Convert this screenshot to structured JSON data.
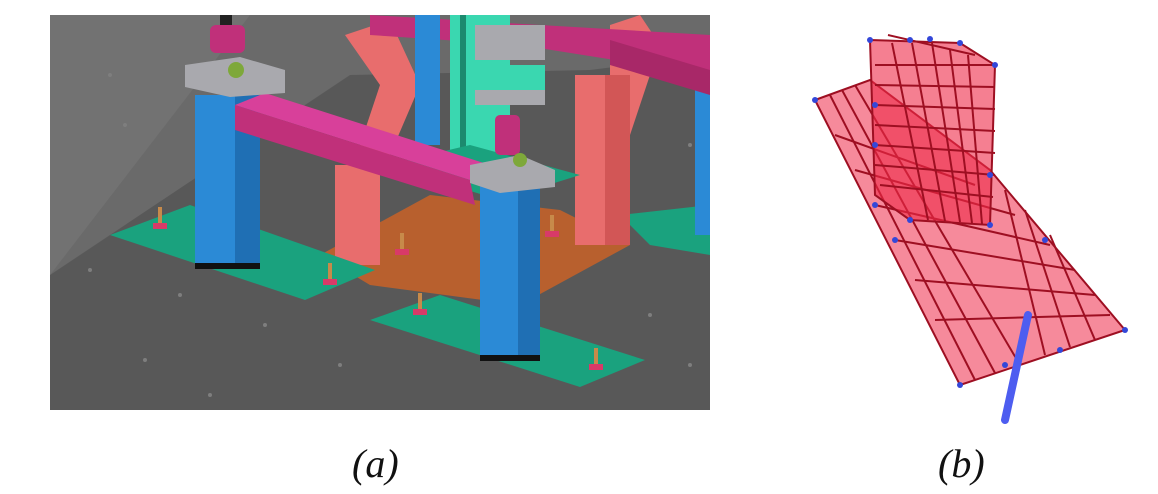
{
  "figure": {
    "panel_a": {
      "caption": "(a)",
      "colors": {
        "floor": "#5a5a5a",
        "wall": "#6e6e6e",
        "column": "#2b8ad6",
        "beam": "#c0307a",
        "brace": "#e86d6d",
        "base_plate": "#1aa27e",
        "center_plate": "#b8602e",
        "cap_plate": "#a9a9ae",
        "teal_block": "#3ad7b0"
      }
    },
    "panel_b": {
      "caption": "(b)",
      "colors": {
        "mesh_fill": "#ee2a48",
        "mesh_line": "#9e0f22",
        "node": "#3347d9",
        "rod": "#4d5df0"
      }
    }
  }
}
